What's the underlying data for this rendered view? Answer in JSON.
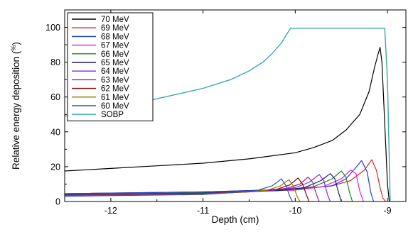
{
  "chart_data": {
    "type": "line",
    "title": "",
    "xlabel": "Depth (cm)",
    "ylabel": "Relative energy deposition (%)",
    "ylabel_main": "Relative energy deposition (",
    "ylabel_unit": "%",
    "ylabel_close": ")",
    "xlim": [
      -12.5,
      -8.8
    ],
    "ylim": [
      0,
      110
    ],
    "xticks": [
      -12,
      -11,
      -10,
      -9
    ],
    "xtick_labels": [
      "-12",
      "-11",
      "-10",
      "-9"
    ],
    "yticks": [
      0,
      20,
      40,
      60,
      80,
      100
    ],
    "ytick_labels": [
      "0",
      "20",
      "40",
      "60",
      "80",
      "100"
    ],
    "grid": false,
    "legend_position": "top-left",
    "series": [
      {
        "name": "70 MeV",
        "color": "#000000",
        "x": [
          -12.5,
          -12.0,
          -11.5,
          -11.0,
          -10.5,
          -10.0,
          -9.8,
          -9.6,
          -9.45,
          -9.3,
          -9.2,
          -9.14,
          -9.1,
          -9.08,
          -9.06,
          -9.03,
          -9.0,
          -8.98
        ],
        "y": [
          17.5,
          19,
          20.5,
          22,
          24.5,
          28,
          31,
          35,
          41,
          50,
          63,
          77,
          85,
          88.5,
          80,
          45,
          10,
          0
        ]
      },
      {
        "name": "69 MeV",
        "color": "#d62728",
        "x": [
          -12.5,
          -11.0,
          -10.0,
          -9.6,
          -9.4,
          -9.25,
          -9.17,
          -9.12,
          -9.08,
          -9.05,
          -9.02
        ],
        "y": [
          4.5,
          5.5,
          7,
          9,
          12,
          18,
          24,
          18,
          8,
          2,
          0
        ]
      },
      {
        "name": "68 MeV",
        "color": "#1f3fd6",
        "x": [
          -12.5,
          -11.0,
          -10.0,
          -9.6,
          -9.45,
          -9.35,
          -9.28,
          -9.22,
          -9.18,
          -9.15
        ],
        "y": [
          4.5,
          5.5,
          7,
          9,
          13,
          19,
          23.5,
          17,
          5,
          0
        ]
      },
      {
        "name": "67 MeV",
        "color": "#e020e0",
        "x": [
          -12.5,
          -11.0,
          -10.0,
          -9.7,
          -9.5,
          -9.4,
          -9.34,
          -9.3,
          -9.26
        ],
        "y": [
          4,
          5,
          6.5,
          8.5,
          13,
          18,
          16,
          6,
          0
        ]
      },
      {
        "name": "66 MeV",
        "color": "#1a8a1a",
        "x": [
          -12.5,
          -11.0,
          -10.1,
          -9.8,
          -9.6,
          -9.5,
          -9.45,
          -9.41,
          -9.38
        ],
        "y": [
          4,
          5,
          6.5,
          8.5,
          13,
          17.5,
          14,
          5,
          0
        ]
      },
      {
        "name": "65 MeV",
        "color": "#1a1a80",
        "x": [
          -12.5,
          -11.0,
          -10.2,
          -9.9,
          -9.72,
          -9.62,
          -9.57,
          -9.53,
          -9.5
        ],
        "y": [
          3.8,
          4.8,
          6.2,
          8,
          12,
          16,
          13,
          5,
          0
        ]
      },
      {
        "name": "64 MeV",
        "color": "#8a2be2",
        "x": [
          -12.5,
          -11.0,
          -10.3,
          -10.0,
          -9.85,
          -9.74,
          -9.69,
          -9.65,
          -9.62
        ],
        "y": [
          3.6,
          4.6,
          6,
          8,
          11,
          15.5,
          12,
          4,
          0
        ]
      },
      {
        "name": "63 MeV",
        "color": "#a0208a",
        "x": [
          -12.5,
          -11.0,
          -10.4,
          -10.1,
          -9.95,
          -9.86,
          -9.81,
          -9.77,
          -9.74
        ],
        "y": [
          3.5,
          4.5,
          5.8,
          7.5,
          10,
          14,
          11,
          4,
          0
        ]
      },
      {
        "name": "62 MeV",
        "color": "#8b0000",
        "x": [
          -12.5,
          -11.0,
          -10.5,
          -10.2,
          -10.06,
          -9.97,
          -9.92,
          -9.88,
          -9.85
        ],
        "y": [
          3.3,
          4.3,
          5.5,
          7,
          9.5,
          13.5,
          10,
          4,
          0
        ]
      },
      {
        "name": "61 MeV",
        "color": "#8b7d00",
        "x": [
          -12.5,
          -11.0,
          -10.6,
          -10.3,
          -10.16,
          -10.07,
          -10.02,
          -9.98,
          -9.95
        ],
        "y": [
          3.2,
          4.2,
          5.3,
          6.5,
          9,
          12.5,
          9,
          3,
          0
        ]
      },
      {
        "name": "60 MeV",
        "color": "#3a4fb0",
        "x": [
          -12.5,
          -11.0,
          -10.7,
          -10.4,
          -10.25,
          -10.15,
          -10.1,
          -10.06,
          -10.03
        ],
        "y": [
          3,
          4,
          5,
          6.5,
          9,
          13,
          9,
          3,
          0
        ]
      },
      {
        "name": "SOBP",
        "color": "#3aa8a8",
        "x": [
          -12.5,
          -12.0,
          -11.5,
          -11.0,
          -10.7,
          -10.5,
          -10.35,
          -10.25,
          -10.15,
          -10.08,
          -10.05,
          -9.9,
          -9.8,
          -9.6,
          -9.5,
          -9.3,
          -9.2,
          -9.05,
          -9.03,
          -9.0,
          -8.97
        ],
        "y": [
          49,
          53.5,
          59,
          65,
          70,
          75,
          80,
          85,
          91,
          97,
          99.5,
          99.5,
          99.5,
          99.5,
          99.5,
          99.5,
          99.5,
          99.5,
          99.5,
          70,
          0
        ]
      }
    ]
  }
}
